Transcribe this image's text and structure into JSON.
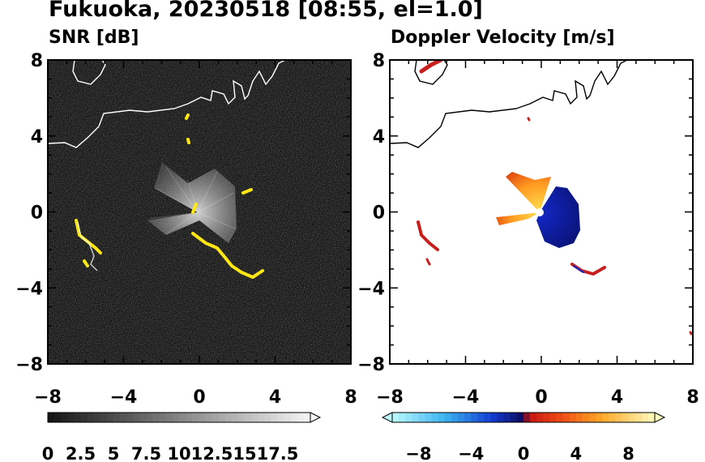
{
  "title": "Fukuoka, 20230518 [08:55, el=1.0]",
  "panels": {
    "snr": {
      "title": "SNR [dB]"
    },
    "doppler": {
      "title": "Doppler Velocity [m/s]"
    }
  },
  "colors": {
    "snr_echo": "#ffe812",
    "coast": "#ffffff",
    "coast_right": "#000000",
    "dop_neg": "#0a1ec8",
    "dop_pos": "#ff7a12",
    "dop_edge": "#c81e1e"
  },
  "chart_data": [
    {
      "type": "heatmap",
      "title": "SNR [dB]",
      "xlim": [
        -8,
        8
      ],
      "ylim": [
        -8,
        8
      ],
      "x_ticks": [
        "−8",
        "−4",
        "0",
        "4",
        "8"
      ],
      "y_ticks": [
        "8",
        "4",
        "0",
        "−4",
        "−8"
      ],
      "colorbar": {
        "range": [
          0,
          20
        ],
        "ticks": [
          "0",
          "2.5",
          "5",
          "7.5",
          "10",
          "12.5",
          "15",
          "17.5"
        ],
        "extend": "max"
      }
    },
    {
      "type": "heatmap",
      "title": "Doppler Velocity [m/s]",
      "xlim": [
        -8,
        8
      ],
      "ylim": [
        -8,
        8
      ],
      "x_ticks": [
        "−8",
        "−4",
        "0",
        "4",
        "8"
      ],
      "y_ticks": [
        "8",
        "4",
        "0",
        "−4",
        "−8"
      ],
      "colorbar": {
        "range": [
          -10,
          10
        ],
        "ticks": [
          "−8",
          "−4",
          "0",
          "4",
          "8"
        ],
        "extend": "both"
      }
    }
  ]
}
